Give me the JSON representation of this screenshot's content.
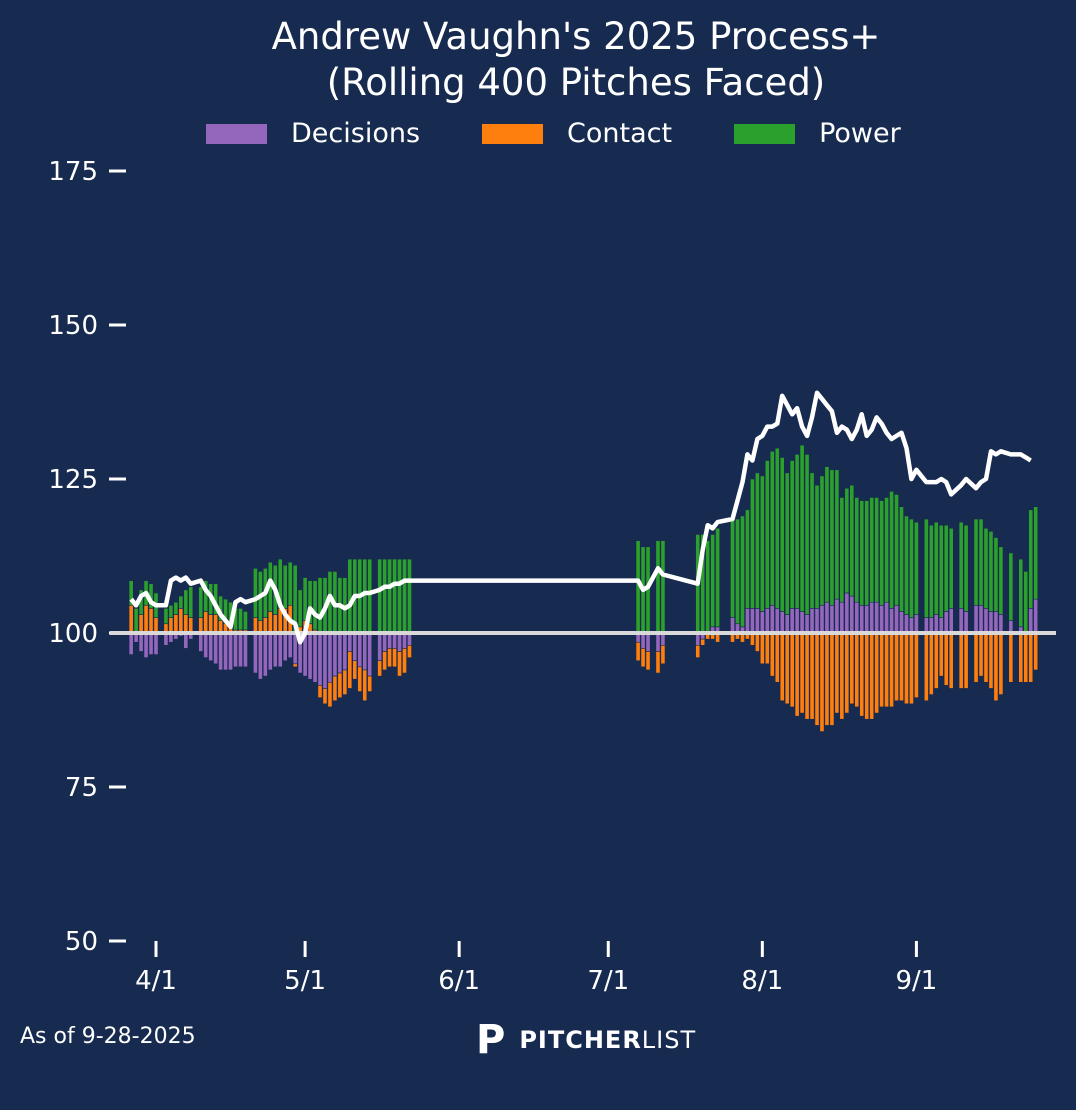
{
  "chart_data": {
    "type": "bar",
    "title_line1": "Andrew Vaughn's 2025 Process+",
    "title_line2": "(Rolling 400 Pitches Faced)",
    "xlabel": "",
    "ylabel": "",
    "ylim": [
      50,
      175
    ],
    "baseline": 100,
    "yticks": [
      175,
      150,
      125,
      100,
      75,
      50
    ],
    "xticks": [
      {
        "label": "4/1",
        "day": 0
      },
      {
        "label": "5/1",
        "day": 30
      },
      {
        "label": "6/1",
        "day": 61
      },
      {
        "label": "7/1",
        "day": 91
      },
      {
        "label": "8/1",
        "day": 122
      },
      {
        "label": "9/1",
        "day": 153
      }
    ],
    "legend_position": "top-center",
    "legend": [
      {
        "name": "Decisions",
        "color": "#9467bd"
      },
      {
        "name": "Contact",
        "color": "#ff7f0e"
      },
      {
        "name": "Power",
        "color": "#2ca02c"
      }
    ],
    "line_color": "#ffffff",
    "stack_note": "each bar shows Decisions, Contact, Power contributions relative to 100; white line = Process+",
    "series_days": [
      -5,
      -4,
      -3,
      -2,
      -1,
      0,
      2,
      3,
      4,
      5,
      6,
      7,
      9,
      10,
      11,
      12,
      13,
      14,
      15,
      16,
      17,
      18,
      20,
      21,
      22,
      23,
      24,
      25,
      26,
      27,
      28,
      29,
      30,
      31,
      32,
      33,
      34,
      35,
      36,
      37,
      38,
      39,
      40,
      41,
      42,
      43,
      45,
      46,
      47,
      48,
      49,
      50,
      51,
      97,
      98,
      99,
      101,
      102,
      109,
      110,
      111,
      112,
      113,
      116,
      117,
      118,
      119,
      120,
      121,
      122,
      123,
      124,
      125,
      126,
      127,
      128,
      129,
      130,
      131,
      132,
      133,
      134,
      135,
      136,
      137,
      138,
      139,
      140,
      141,
      142,
      143,
      144,
      145,
      146,
      147,
      148,
      149,
      150,
      151,
      152,
      153,
      155,
      156,
      157,
      158,
      159,
      160,
      162,
      163,
      165,
      166,
      167,
      168,
      169,
      170,
      172,
      174,
      175,
      176,
      177
    ],
    "series": [
      {
        "name": "Decisions",
        "values": [
          -3.5,
          -1.5,
          -3,
          -4,
          -3.5,
          -3.5,
          -2,
          -1.5,
          -1,
          -0.5,
          -2.5,
          -1,
          -3,
          -4,
          -4.5,
          -5,
          -6,
          -6,
          -6,
          -5.5,
          -5.5,
          -5.5,
          -6.5,
          -7.5,
          -7,
          -6,
          -5.5,
          -5.5,
          -4.5,
          -4,
          -5,
          -6.5,
          -7,
          -7.5,
          -8,
          -8.5,
          -9,
          -8,
          -7,
          -6.5,
          -6,
          -3,
          -4.5,
          -5.5,
          -6,
          -7,
          -4.5,
          -3,
          -2.5,
          -2.5,
          -3,
          -2.5,
          -2,
          -1.5,
          -2.5,
          -3,
          -3,
          -2,
          -2,
          -1,
          0,
          1,
          1,
          2.5,
          1.5,
          1,
          4,
          4,
          4,
          3.5,
          4,
          4.5,
          4,
          3.5,
          3,
          4,
          4,
          3.5,
          3,
          4,
          4,
          4.5,
          5,
          4.5,
          5.5,
          5,
          6.5,
          6,
          5,
          4.5,
          4.5,
          5,
          5,
          4.5,
          5,
          4,
          4.5,
          3.5,
          3,
          2.5,
          3,
          2.5,
          2.5,
          3,
          2.5,
          3.5,
          4,
          4,
          3.5,
          4.5,
          4.5,
          4,
          3.5,
          3.5,
          3,
          2,
          1,
          0,
          4,
          5.5,
          6,
          7,
          8,
          8
        ]
      },
      {
        "name": "Contact",
        "values": [
          4.5,
          0,
          3,
          4.5,
          4,
          2.5,
          1.5,
          2.5,
          3,
          4,
          3,
          2.5,
          2.5,
          3.5,
          3,
          3,
          2,
          1.5,
          1,
          0.5,
          0.5,
          0.5,
          2.5,
          2,
          2.5,
          3.5,
          3,
          4,
          4,
          4.5,
          -0.5,
          1,
          2,
          1.5,
          0.5,
          -2,
          -2.5,
          -4,
          -4,
          -4,
          -4,
          -6,
          -3,
          -4,
          -5,
          -2.5,
          -2.5,
          -3,
          -3,
          -3,
          -4,
          -4,
          -2,
          -3,
          -3,
          -3,
          -3.5,
          -3,
          -2,
          -1,
          -1,
          -1,
          -1.5,
          -1.5,
          -1,
          -1.5,
          -1,
          -2,
          -3,
          -5,
          -5,
          -7,
          -8,
          -11,
          -11.5,
          -12,
          -13.5,
          -13,
          -14,
          -14,
          -15,
          -16,
          -15,
          -15,
          -13,
          -14,
          -13,
          -11.5,
          -12,
          -13.5,
          -14,
          -14,
          -13,
          -12,
          -12,
          -12,
          -11,
          -11,
          -11.5,
          -11.5,
          -10.5,
          -11,
          -10,
          -9,
          -7,
          -8.5,
          -9,
          -9,
          -9,
          -8,
          -7,
          -8,
          -9,
          -11,
          -10,
          -8,
          -8,
          -8,
          -8,
          -6,
          -6
        ]
      },
      {
        "name": "Power",
        "values": [
          4,
          4,
          4,
          4,
          4,
          4,
          2.5,
          2,
          2,
          2,
          4,
          5,
          5,
          5,
          5,
          5,
          4,
          4,
          4,
          3.5,
          3.5,
          3,
          8,
          8,
          8,
          8,
          8,
          8,
          7,
          7,
          11,
          6,
          7,
          7,
          8,
          9,
          9,
          10,
          10,
          9,
          9,
          12,
          12,
          12,
          12,
          12,
          12,
          12,
          12,
          12,
          12,
          12,
          12,
          15,
          14,
          14,
          15,
          15,
          16,
          16,
          15,
          15,
          16,
          16,
          17,
          18,
          16,
          21,
          22,
          22,
          24,
          25,
          26,
          25,
          23,
          24,
          25,
          27,
          26,
          22,
          20,
          21,
          22,
          22,
          21,
          17,
          17,
          18,
          17,
          17,
          17,
          17,
          17,
          17,
          17,
          19,
          18,
          17,
          16,
          16,
          15,
          16,
          15,
          15,
          15,
          14,
          13,
          14,
          14,
          14,
          14,
          13,
          13,
          12,
          11,
          11,
          11,
          10,
          16,
          15,
          15,
          15,
          15
        ]
      },
      {
        "name": "Process+",
        "values": [
          105.5,
          104.5,
          106,
          106.5,
          105,
          104.5,
          104.5,
          108.5,
          109,
          108.5,
          109,
          108,
          108.5,
          107,
          106,
          104.5,
          103,
          102,
          101,
          105,
          105.5,
          105,
          105.5,
          106,
          106.5,
          108.5,
          107,
          104.5,
          103,
          102,
          101.5,
          98.5,
          100,
          104,
          103,
          102.5,
          104,
          106,
          104.5,
          104.5,
          104,
          104.5,
          106,
          106,
          106.5,
          106.5,
          107,
          107.5,
          107.5,
          108,
          108,
          108.5,
          108.5,
          108.5,
          107,
          107.5,
          110.5,
          109.5,
          108,
          113.5,
          117.5,
          117,
          118,
          118.5,
          121.5,
          124.5,
          129,
          128,
          131.5,
          132,
          133.5,
          133.5,
          134,
          138.5,
          137,
          135.5,
          136.5,
          133.5,
          132,
          135,
          139,
          138,
          137,
          136,
          132.5,
          133.5,
          133,
          131.5,
          133,
          135.5,
          132,
          133,
          135,
          134,
          132.5,
          131.5,
          132,
          132.5,
          130,
          125,
          126.5,
          124.5,
          124.5,
          124.5,
          125,
          124.5,
          122.5,
          124,
          125,
          123.5,
          124.5,
          125,
          129.5,
          129,
          129.5,
          129,
          129,
          128.5,
          128
        ]
      }
    ]
  },
  "footer": {
    "as_of": "As of 9-28-2025",
    "logo_mark": "P",
    "logo_bold": "PITCHER",
    "logo_light": "LIST"
  }
}
